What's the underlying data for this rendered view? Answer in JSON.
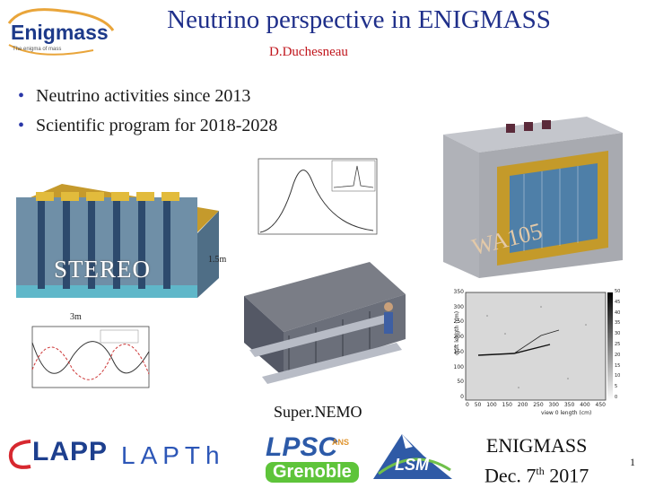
{
  "title": "Neutrino perspective in ENIGMASS",
  "author": "D.Duchesneau",
  "bullets": [
    "Neutrino activities since 2013",
    "Scientific program  for 2018-2028"
  ],
  "logo": {
    "name": "Enigmass",
    "tagline": "The enigma of mass"
  },
  "labels": {
    "stereo": "STEREO",
    "dim_height": "1.5m",
    "dim_width": "3m",
    "wa105": "WA105",
    "supernemo": "Super.NEMO"
  },
  "footer": {
    "line1": "ENIGMASS",
    "line2_pre": "Dec. 7",
    "line2_sup": "th",
    "line2_post": "  2017",
    "page": "1"
  },
  "partner_logos": {
    "lapp": "LAPP",
    "lapth": "LAPTh",
    "lpsc": "LPSC",
    "lpsc_ans": "ANS",
    "grenoble": "Grenoble",
    "lsm": "LSM"
  },
  "plot_right": {
    "ylabel": "drift length (cm)",
    "xlabel": "view 0 length (cm)",
    "y_ticks": [
      "0",
      "50",
      "100",
      "150",
      "200",
      "250",
      "300",
      "350"
    ],
    "x_ticks": [
      "0",
      "50",
      "100",
      "150",
      "200",
      "250",
      "300",
      "350",
      "400",
      "450"
    ],
    "z_ticks": [
      "0",
      "5",
      "10",
      "15",
      "20",
      "25",
      "30",
      "35",
      "40",
      "45",
      "50"
    ]
  },
  "colors": {
    "title": "#1f2f8a",
    "author": "#c0151c",
    "bullet": "#2a37a8"
  }
}
